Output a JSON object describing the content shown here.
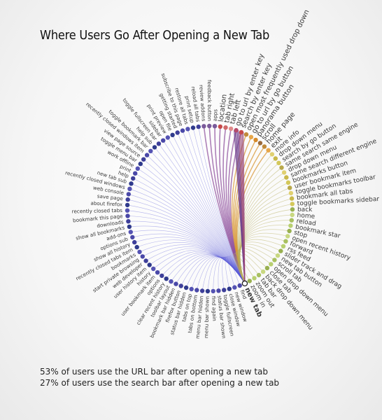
{
  "title": "Where Users Go After Opening a New Tab",
  "stats": [
    "53% of users use the URL bar after opening a new tab",
    "27% of users use the search bar after opening a new tab"
  ],
  "chart_data": {
    "type": "chord",
    "title": "Where Users Go After Opening a New Tab",
    "source": "new tab",
    "nodes": [
      "new tab",
      "find",
      "new window",
      "close window",
      "toggle fullscreen",
      "status bar shown",
      "find again",
      "menu bar shown",
      "menu bar hidden",
      "tabs on bottom",
      "tabs on top",
      "status bar hidden",
      "firefox button",
      "bookmark bar hidden",
      "toolbar layout",
      "clear recent history",
      "options",
      "user bookmark item",
      "history",
      "user history item",
      "web developer",
      "start private browsing",
      "bookmarks",
      "recently closed tabs item",
      "show all history",
      "options sub",
      "add-ons",
      "show all bookmarks",
      "downloads",
      "bookmark this page",
      "recently closed tabs",
      "about firefox",
      "save page",
      "web console",
      "recently closed windows",
      "new tab sub",
      "help",
      "print",
      "work offline",
      "toggle menu bar",
      "view page source",
      "recently closed windows item",
      "toggle bookmark bar",
      "help sub",
      "toggle fullscreen bar",
      "sidebar",
      "print preview",
      "open file",
      "getting started",
      "subscribe to this page",
      "restore all tabs",
      "print setup",
      "reload all tabs",
      "review addons",
      "feedback button",
      "apps",
      "location",
      "tab right",
      "tab left",
      "go to url by enter key",
      "search by enter key",
      "open most frequently used drop down",
      "go to url by go button",
      "panorama button",
      "scroll",
      "home page",
      "exit",
      "more info",
      "drop down menu",
      "search by go button",
      "same search same engine",
      "drop down menu",
      "same search different engine",
      "bookmarks button",
      "user bookmark item",
      "toggle bookmarks toolbar",
      "bookmark all tabs",
      "toggle bookmarks sidebar",
      "back",
      "home",
      "reload",
      "bookmark star",
      "stop",
      "open recent history",
      "forward",
      "rss feed",
      "slider track and drag",
      "new tab button",
      "scroll tab",
      "open drop down menu",
      "close tab",
      "back drop down menu",
      "tab bar",
      "zoom out",
      "zoom in"
    ],
    "flows": [
      {
        "to": "go to url by enter key",
        "share": "53%"
      },
      {
        "to": "search by enter key",
        "share": "27%"
      }
    ]
  }
}
